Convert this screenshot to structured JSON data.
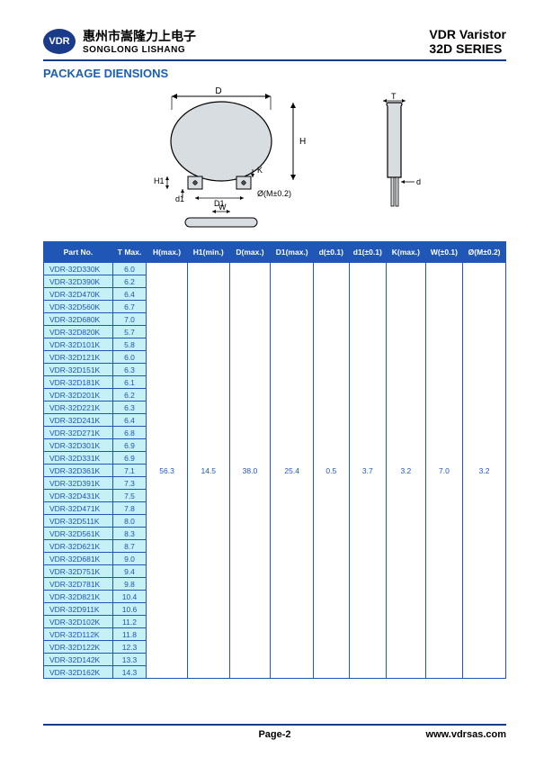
{
  "header": {
    "logo_text": "VDR",
    "company_cn": "惠州市嵩隆力上电子",
    "company_en": "SONGLONG LISHANG",
    "product_type": "VDR   Varistor",
    "series": "32D  SERIES"
  },
  "section_title": "PACKAGE DIENSIONS",
  "diagram": {
    "labels": [
      "D",
      "H",
      "K",
      "H1",
      "d1",
      "D1",
      "Ø(M±0.2)",
      "W",
      "T",
      "d"
    ]
  },
  "table": {
    "columns": [
      "Part No.",
      "T Max.",
      "H(max.)",
      "H1(min.)",
      "D(max.)",
      "D1(max.)",
      "d(±0.1)",
      "d1(±0.1)",
      "K(max.)",
      "W(±0.1)",
      "Ø(M±0.2)"
    ],
    "col_widths": [
      "74",
      "36",
      "44",
      "45",
      "44",
      "46",
      "38",
      "40",
      "42",
      "40",
      "46"
    ],
    "merged_values": [
      "56.3",
      "14.5",
      "38.0",
      "25.4",
      "0.5",
      "3.7",
      "3.2",
      "7.0",
      "3.2"
    ],
    "rows": [
      {
        "part": "VDR-32D330K",
        "tmax": "6.0"
      },
      {
        "part": "VDR-32D390K",
        "tmax": "6.2"
      },
      {
        "part": "VDR-32D470K",
        "tmax": "6.4"
      },
      {
        "part": "VDR-32D560K",
        "tmax": "6.7"
      },
      {
        "part": "VDR-32D680K",
        "tmax": "7.0"
      },
      {
        "part": "VDR-32D820K",
        "tmax": "5.7"
      },
      {
        "part": "VDR-32D101K",
        "tmax": "5.8"
      },
      {
        "part": "VDR-32D121K",
        "tmax": "6.0"
      },
      {
        "part": "VDR-32D151K",
        "tmax": "6.3"
      },
      {
        "part": "VDR-32D181K",
        "tmax": "6.1"
      },
      {
        "part": "VDR-32D201K",
        "tmax": "6.2"
      },
      {
        "part": "VDR-32D221K",
        "tmax": "6.3"
      },
      {
        "part": "VDR-32D241K",
        "tmax": "6.4"
      },
      {
        "part": "VDR-32D271K",
        "tmax": "6.8"
      },
      {
        "part": "VDR-32D301K",
        "tmax": "6.9"
      },
      {
        "part": "VDR-32D331K",
        "tmax": "6.9"
      },
      {
        "part": "VDR-32D361K",
        "tmax": "7.1"
      },
      {
        "part": "VDR-32D391K",
        "tmax": "7.3"
      },
      {
        "part": "VDR-32D431K",
        "tmax": "7.5"
      },
      {
        "part": "VDR-32D471K",
        "tmax": "7.8"
      },
      {
        "part": "VDR-32D511K",
        "tmax": "8.0"
      },
      {
        "part": "VDR-32D561K",
        "tmax": "8.3"
      },
      {
        "part": "VDR-32D621K",
        "tmax": "8.7"
      },
      {
        "part": "VDR-32D681K",
        "tmax": "9.0"
      },
      {
        "part": "VDR-32D751K",
        "tmax": "9.4"
      },
      {
        "part": "VDR-32D781K",
        "tmax": "9.8"
      },
      {
        "part": "VDR-32D821K",
        "tmax": "10.4"
      },
      {
        "part": "VDR-32D911K",
        "tmax": "10.6"
      },
      {
        "part": "VDR-32D102K",
        "tmax": "11.2"
      },
      {
        "part": "VDR-32D112K",
        "tmax": "11.8"
      },
      {
        "part": "VDR-32D122K",
        "tmax": "12.3"
      },
      {
        "part": "VDR-32D142K",
        "tmax": "13.3"
      },
      {
        "part": "VDR-32D162K",
        "tmax": "14.3"
      }
    ]
  },
  "footer": {
    "page": "Page-2",
    "url": "www.vdrsas.com"
  }
}
